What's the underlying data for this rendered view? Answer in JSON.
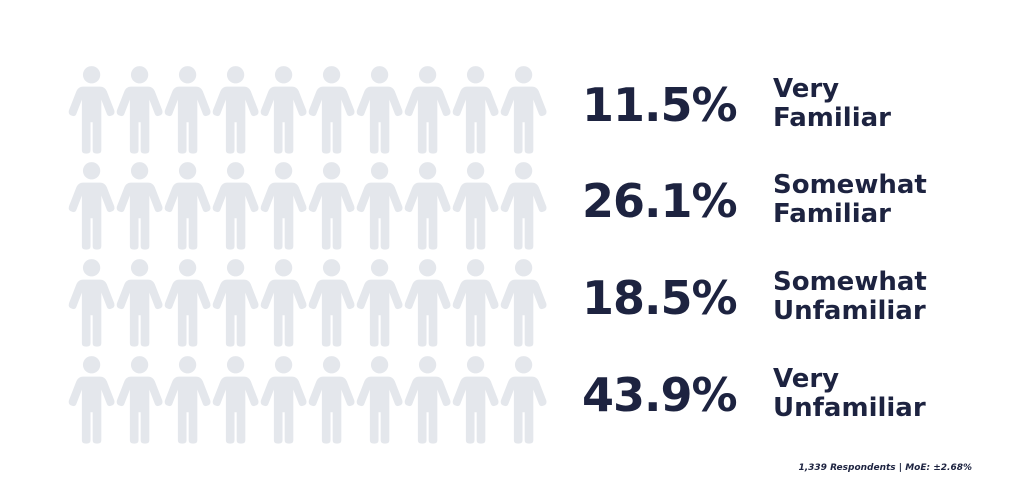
{
  "chart_data": {
    "type": "pictogram",
    "categories": [
      "Very Familiar",
      "Somewhat Familiar",
      "Somewhat Unfamiliar",
      "Very Unfamiliar"
    ],
    "values": [
      11.5,
      26.1,
      18.5,
      43.9
    ],
    "value_labels": [
      "11.5%",
      "26.1%",
      "18.5%",
      "43.9%"
    ],
    "xlim": [
      0,
      100
    ],
    "color": "#3b2db8",
    "empty_color": "#e4e7ec",
    "note": "1,339 Respondents | MoE: ±2.68%"
  }
}
